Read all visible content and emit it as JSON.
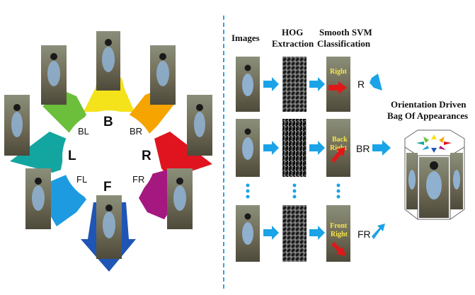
{
  "orientations": {
    "B": "B",
    "BL": "BL",
    "BR": "BR",
    "L": "L",
    "R": "R",
    "FL": "FL",
    "F": "F",
    "FR": "FR"
  },
  "pipeline": {
    "headers": {
      "images": "Images",
      "hog_line1": "HOG",
      "hog_line2": "Extraction",
      "svm_line1": "Smooth SVM",
      "svm_line2": "Classification"
    },
    "rows": [
      {
        "thumb_text": [
          "Right"
        ],
        "output": "R"
      },
      {
        "thumb_text": [
          "Back",
          "Right"
        ],
        "output": "BR"
      },
      {
        "thumb_text": [
          "Front",
          "Right"
        ],
        "output": "FR"
      }
    ]
  },
  "result": {
    "title_line1": "Orientation Driven",
    "title_line2": "Bag Of Appearances"
  },
  "colors": {
    "B": "#f4e21a",
    "BR": "#f5a400",
    "R": "#e0141e",
    "FR": "#a5187f",
    "F": "#1f55b5",
    "FL": "#1e9be0",
    "L": "#13a6a0",
    "BL": "#6cbf3a",
    "pipeline_arrow": "#1aa3e6",
    "divider": "#2aa7e0"
  }
}
